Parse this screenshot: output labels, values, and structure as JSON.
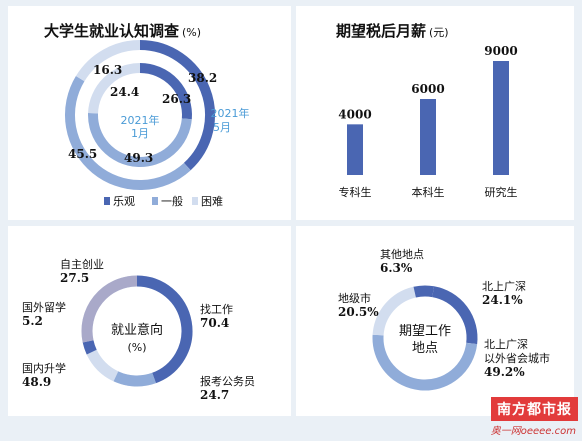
{
  "colors": {
    "dark": "#4a66b2",
    "mid": "#90acd9",
    "light": "#d2ddef",
    "grey": "#a9a9c9",
    "bars": "#4a66b2"
  },
  "texts": {
    "survey_title": "大学生就业认知调查",
    "survey_unit": "(%)",
    "salary_title": "期望税后月薪",
    "salary_unit": "(元)",
    "inner_label_year": "2021年",
    "inner_label_month": "1月",
    "outer_label_year": "2021年",
    "outer_label_month": "5月",
    "center_employment_1": "就业意向",
    "center_employment_2": "(%)",
    "center_location_1": "期望工作",
    "center_location_2": "地点",
    "watermark": "南方都市报",
    "watermark_url": "奥一网oeeee.com"
  },
  "chart_data": [
    {
      "type": "pie",
      "title": "大学生就业认知调查",
      "unit": "(%)",
      "legend": [
        "乐观",
        "一般",
        "困难"
      ],
      "series": [
        {
          "name": "2021年5月",
          "values": [
            38.2,
            45.5,
            16.3
          ]
        },
        {
          "name": "2021年1月",
          "values": [
            26.3,
            49.3,
            24.4
          ]
        }
      ]
    },
    {
      "type": "bar",
      "title": "期望税后月薪",
      "unit": "(元)",
      "categories": [
        "专科生",
        "本科生",
        "研究生"
      ],
      "values": [
        4000,
        6000,
        9000
      ],
      "ylim": [
        0,
        9000
      ]
    },
    {
      "type": "pie",
      "title": "就业意向",
      "unit": "(%)",
      "categories": [
        "找工作",
        "报考公务员",
        "国内升学",
        "国外留学",
        "自主创业"
      ],
      "values": [
        70.4,
        24.7,
        48.9,
        5.2,
        27.5
      ]
    },
    {
      "type": "pie",
      "title": "期望工作地点",
      "categories": [
        "北上广深",
        "北上广深以外省会城市",
        "地级市",
        "其他地点"
      ],
      "values": [
        24.1,
        49.2,
        20.5,
        6.3
      ]
    }
  ],
  "labels": {
    "survey_outer": [
      "38.2",
      "45.5",
      "16.3"
    ],
    "survey_inner": [
      "26.3",
      "49.3",
      "24.4"
    ],
    "bars": [
      "4000",
      "6000",
      "9000"
    ],
    "employ_names": [
      "找工作",
      "报考公务员",
      "国内升学",
      "国外留学",
      "自主创业"
    ],
    "employ_vals": [
      "70.4",
      "24.7",
      "48.9",
      "5.2",
      "27.5"
    ],
    "loc_names": [
      "北上广深",
      "北上广深\n以外省会城市",
      "地级市",
      "其他地点"
    ],
    "loc_vals": [
      "24.1%",
      "49.2%",
      "20.5%",
      "6.3%"
    ]
  }
}
